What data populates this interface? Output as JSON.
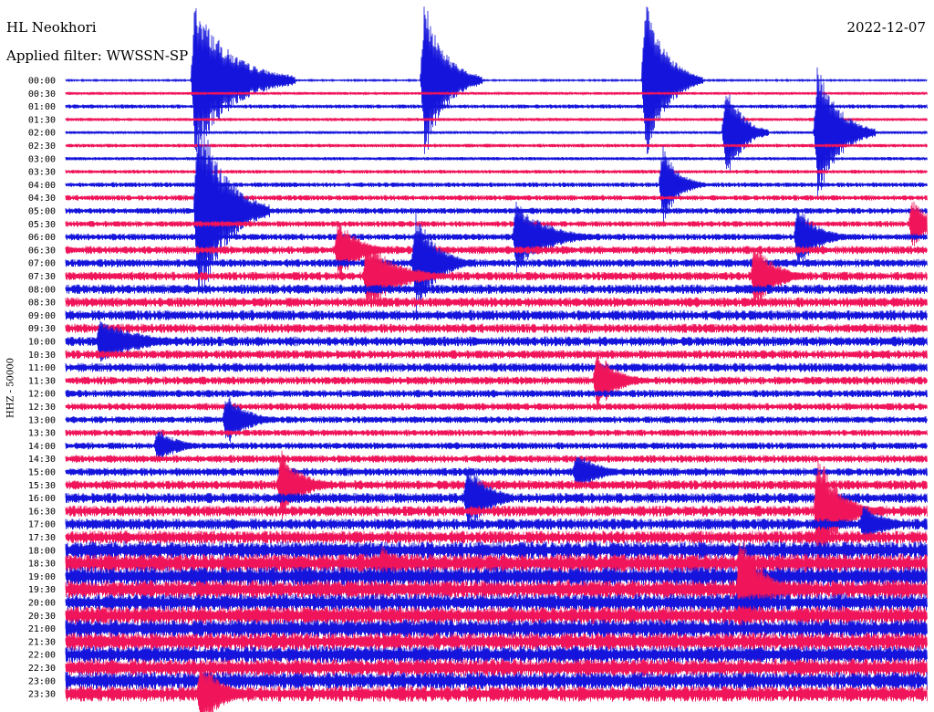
{
  "header": {
    "station": "HL Neokhori",
    "filter": "Applied filter: WWSSN-SP",
    "date": "2022-12-07"
  },
  "chart_data": {
    "type": "line",
    "title": "HL Neokhori",
    "subtitle": "Applied filter: WWSSN-SP",
    "date": "2022-12-07",
    "ylabel": "HHZ - 50000",
    "xlabel": "",
    "trace_minutes": 30,
    "row_labels": [
      "00:00",
      "00:30",
      "01:00",
      "01:30",
      "02:00",
      "02:30",
      "03:00",
      "03:30",
      "04:00",
      "04:30",
      "05:00",
      "05:30",
      "06:00",
      "06:30",
      "07:00",
      "07:30",
      "08:00",
      "08:30",
      "09:00",
      "09:30",
      "10:00",
      "10:30",
      "11:00",
      "11:30",
      "12:00",
      "12:30",
      "13:00",
      "13:30",
      "14:00",
      "14:30",
      "15:00",
      "15:30",
      "16:00",
      "16:30",
      "17:00",
      "17:30",
      "18:00",
      "18:30",
      "19:00",
      "19:30",
      "20:00",
      "20:30",
      "21:00",
      "21:30",
      "22:00",
      "22:30",
      "23:00",
      "23:30"
    ],
    "colors": [
      "#1414dc",
      "#f0145a"
    ],
    "series": [
      {
        "values": [
          0.6,
          1.0,
          1.5,
          1.2,
          1.0,
          1.3,
          1.2,
          1.4,
          1.8,
          2.0,
          2.2,
          2.2,
          2.5,
          3.0,
          3.0,
          3.2,
          3.5,
          3.6,
          3.8,
          3.4,
          3.6,
          3.2,
          3.3,
          3.0,
          2.8,
          2.7,
          2.5,
          2.4,
          2.6,
          2.8,
          3.0,
          3.5,
          3.8,
          4.0,
          4.2,
          4.8,
          6.5,
          7.0,
          7.2,
          6.8,
          6.5,
          6.6,
          6.8,
          6.5,
          6.4,
          6.6,
          6.5,
          5.8
        ]
      }
    ],
    "events": [
      {
        "x_min": 4.5,
        "row": 0,
        "amp_px": 88,
        "dur_min": 3.5
      },
      {
        "x_min": 4.6,
        "row": 10,
        "amp_px": 120,
        "dur_min": 2.5
      },
      {
        "x_min": 12.5,
        "row": 0,
        "amp_px": 90,
        "dur_min": 2
      },
      {
        "x_min": 20.2,
        "row": 0,
        "amp_px": 90,
        "dur_min": 2
      },
      {
        "x_min": 23.0,
        "row": 4,
        "amp_px": 60,
        "dur_min": 1.5
      },
      {
        "x_min": 23.5,
        "row": 39,
        "amp_px": 70,
        "dur_min": 2
      },
      {
        "x_min": 4.7,
        "row": 47,
        "amp_px": 40,
        "dur_min": 2
      },
      {
        "x_min": 26.2,
        "row": 4,
        "amp_px": 80,
        "dur_min": 2
      },
      {
        "x_min": 26.2,
        "row": 33,
        "amp_px": 70,
        "dur_min": 2
      },
      {
        "x_min": 12.2,
        "row": 14,
        "amp_px": 60,
        "dur_min": 2
      },
      {
        "x_min": 7.5,
        "row": 31,
        "amp_px": 40,
        "dur_min": 2
      },
      {
        "x_min": 14.0,
        "row": 32,
        "amp_px": 40,
        "dur_min": 2
      },
      {
        "x_min": 18.5,
        "row": 23,
        "amp_px": 35,
        "dur_min": 2
      },
      {
        "x_min": 10.5,
        "row": 15,
        "amp_px": 40,
        "dur_min": 3
      },
      {
        "x_min": 9.5,
        "row": 13,
        "amp_px": 35,
        "dur_min": 2
      },
      {
        "x_min": 1.2,
        "row": 20,
        "amp_px": 25,
        "dur_min": 4
      },
      {
        "x_min": 24.0,
        "row": 15,
        "amp_px": 40,
        "dur_min": 2
      },
      {
        "x_min": 15.7,
        "row": 12,
        "amp_px": 40,
        "dur_min": 3
      },
      {
        "x_min": 20.8,
        "row": 8,
        "amp_px": 45,
        "dur_min": 1.5
      },
      {
        "x_min": 25.5,
        "row": 12,
        "amp_px": 35,
        "dur_min": 2
      },
      {
        "x_min": 29.5,
        "row": 11,
        "amp_px": 30,
        "dur_min": 1.5
      },
      {
        "x_min": 5.6,
        "row": 26,
        "amp_px": 30,
        "dur_min": 2
      },
      {
        "x_min": 3.2,
        "row": 28,
        "amp_px": 20,
        "dur_min": 2
      },
      {
        "x_min": 17.8,
        "row": 30,
        "amp_px": 25,
        "dur_min": 2
      },
      {
        "x_min": 11.0,
        "row": 37,
        "amp_px": 20,
        "dur_min": 2
      },
      {
        "x_min": 27.8,
        "row": 34,
        "amp_px": 25,
        "dur_min": 2
      }
    ]
  }
}
